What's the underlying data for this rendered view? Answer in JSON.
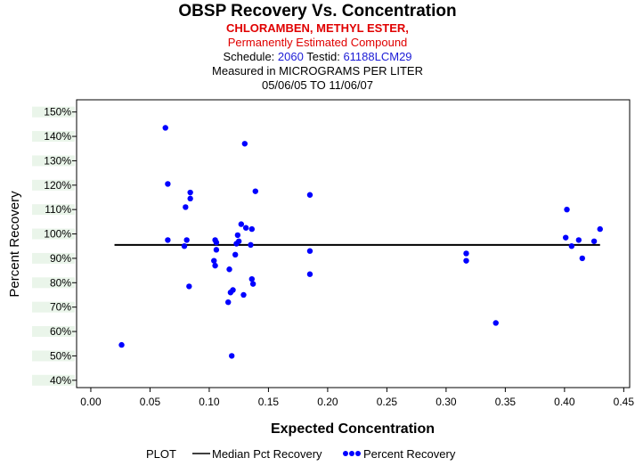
{
  "header": {
    "title": "OBSP Recovery Vs. Concentration",
    "compound": "CHLORAMBEN, METHYL ESTER,",
    "estimated_note": "Permanently Estimated Compound",
    "schedule_label": "Schedule:",
    "schedule_value": "2060",
    "testid_label": "Testid:",
    "testid_value": "61188LCM29",
    "measured_in": "Measured in  MICROGRAMS PER LITER",
    "date_range": "05/06/05 TO 11/06/07"
  },
  "colors": {
    "points": "#0000ff",
    "median_line": "#000000",
    "grid_band": "#eaf5ea",
    "red_text": "#e00000",
    "blue_text": "#1b1bd6"
  },
  "chart_data": {
    "type": "scatter",
    "title": "OBSP Recovery Vs. Concentration",
    "xlabel": "Expected Concentration",
    "ylabel": "Percent Recovery",
    "xlim": [
      -0.012,
      0.455
    ],
    "ylim": [
      37,
      155
    ],
    "x_ticks": [
      0.0,
      0.05,
      0.1,
      0.15,
      0.2,
      0.25,
      0.3,
      0.35,
      0.4,
      0.45
    ],
    "x_tick_labels": [
      "0.00",
      "0.05",
      "0.10",
      "0.15",
      "0.20",
      "0.25",
      "0.30",
      "0.35",
      "0.40",
      "0.45"
    ],
    "y_ticks": [
      40,
      50,
      60,
      70,
      80,
      90,
      100,
      110,
      120,
      130,
      140,
      150
    ],
    "y_tick_labels": [
      "40%",
      "50%",
      "60%",
      "70%",
      "80%",
      "90%",
      "100%",
      "110%",
      "120%",
      "130%",
      "140%",
      "150%"
    ],
    "legend": {
      "title": "PLOT",
      "median_label": "Median Pct Recovery",
      "points_label": "Percent Recovery",
      "position": "bottom"
    },
    "series": [
      {
        "name": "Median Pct Recovery",
        "kind": "line",
        "x": [
          0.02,
          0.43
        ],
        "y": [
          95.5,
          95.5
        ]
      },
      {
        "name": "Percent Recovery",
        "kind": "points",
        "points": [
          [
            0.026,
            54.5
          ],
          [
            0.063,
            143.5
          ],
          [
            0.065,
            120.5
          ],
          [
            0.065,
            97.5
          ],
          [
            0.079,
            95
          ],
          [
            0.08,
            111
          ],
          [
            0.081,
            97.5
          ],
          [
            0.083,
            78.5
          ],
          [
            0.084,
            117
          ],
          [
            0.084,
            114.5
          ],
          [
            0.104,
            89
          ],
          [
            0.105,
            97.5
          ],
          [
            0.105,
            87
          ],
          [
            0.106,
            93.5
          ],
          [
            0.106,
            96.5
          ],
          [
            0.116,
            72
          ],
          [
            0.117,
            85.5
          ],
          [
            0.118,
            76
          ],
          [
            0.119,
            50
          ],
          [
            0.12,
            77
          ],
          [
            0.122,
            91.5
          ],
          [
            0.123,
            96
          ],
          [
            0.124,
            99.5
          ],
          [
            0.125,
            97
          ],
          [
            0.127,
            104
          ],
          [
            0.129,
            75
          ],
          [
            0.13,
            137
          ],
          [
            0.131,
            102.5
          ],
          [
            0.135,
            95.5
          ],
          [
            0.136,
            102
          ],
          [
            0.136,
            81.5
          ],
          [
            0.137,
            79.5
          ],
          [
            0.139,
            117.5
          ],
          [
            0.185,
            116
          ],
          [
            0.185,
            93
          ],
          [
            0.185,
            83.5
          ],
          [
            0.317,
            92
          ],
          [
            0.317,
            89
          ],
          [
            0.342,
            63.5
          ],
          [
            0.401,
            98.5
          ],
          [
            0.402,
            110
          ],
          [
            0.406,
            95
          ],
          [
            0.412,
            97.5
          ],
          [
            0.415,
            90
          ],
          [
            0.425,
            97
          ],
          [
            0.43,
            102
          ]
        ]
      }
    ]
  }
}
